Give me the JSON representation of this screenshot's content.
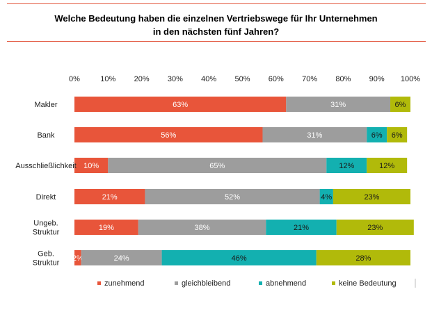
{
  "title_line1": "Welche Bedeutung haben die einzelnen Vertriebswege für Ihr Unternehmen",
  "title_line2": "in den nächsten fünf Jahren?",
  "chart_data": {
    "type": "bar",
    "orientation": "horizontal",
    "stacked": true,
    "percent_stacked": true,
    "xlim": [
      0,
      100
    ],
    "x_ticks": [
      "0%",
      "10%",
      "20%",
      "30%",
      "40%",
      "50%",
      "60%",
      "70%",
      "80%",
      "90%",
      "100%"
    ],
    "axis_position": "top",
    "legend_position": "bottom",
    "categories": [
      [
        "Makler"
      ],
      [
        "Bank"
      ],
      [
        "Ausschließlichkeit"
      ],
      [
        "Direkt"
      ],
      [
        "Ungeb.",
        "Struktur"
      ],
      [
        "Geb.",
        "Struktur"
      ]
    ],
    "series": [
      {
        "name": "zunehmend",
        "color": "#e8553a",
        "label_color": "#ffffff",
        "values": [
          63,
          56,
          10,
          21,
          19,
          2
        ]
      },
      {
        "name": "gleichbleibend",
        "color": "#9d9d9d",
        "label_color": "#ffffff",
        "values": [
          31,
          31,
          65,
          52,
          38,
          24
        ]
      },
      {
        "name": "abnehmend",
        "color": "#13b0b0",
        "label_color": "#1a1a1a",
        "values": [
          0,
          6,
          12,
          4,
          21,
          46
        ]
      },
      {
        "name": "keine Bedeutung",
        "color": "#b1ba0a",
        "label_color": "#1a1a1a",
        "values": [
          6,
          6,
          12,
          23,
          23,
          28
        ]
      }
    ]
  }
}
